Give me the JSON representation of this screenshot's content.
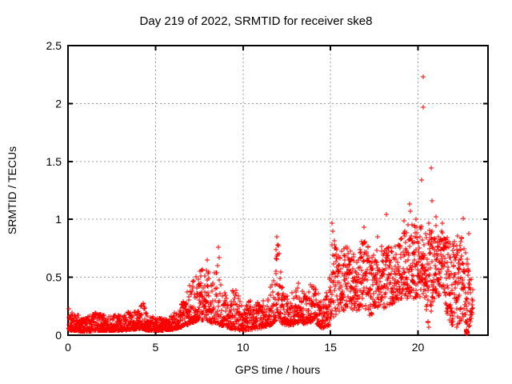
{
  "page": {
    "background": "#ffffff"
  },
  "chart_data": {
    "type": "scatter",
    "title": "Day 219 of 2022, SRMTID for receiver ske8",
    "xlabel": "GPS time / hours",
    "ylabel": "SRMTID / TECUs",
    "xlim": [
      0,
      24
    ],
    "ylim": [
      0,
      2.5
    ],
    "xticks": [
      {
        "v": 0,
        "label": "0"
      },
      {
        "v": 5,
        "label": "5"
      },
      {
        "v": 10,
        "label": "10"
      },
      {
        "v": 15,
        "label": "15"
      },
      {
        "v": 20,
        "label": "20"
      }
    ],
    "yticks": [
      {
        "v": 0,
        "label": "0"
      },
      {
        "v": 0.5,
        "label": "0.5"
      },
      {
        "v": 1,
        "label": "1"
      },
      {
        "v": 1.5,
        "label": "1.5"
      },
      {
        "v": 2,
        "label": "2"
      },
      {
        "v": 2.5,
        "label": "2.5"
      }
    ],
    "grid": true,
    "legend_position": "none",
    "marker": {
      "glyph": "plus",
      "size": 7,
      "color": "#ff0000",
      "stroke_width": 1
    },
    "grid_color": "#9e9e9e",
    "frame_color": "#000000",
    "text_color": "#000000",
    "seed": 219,
    "series_name": "SRMTID for receiver ske8",
    "envelope_columns": [
      "hour",
      "value_low",
      "value_high",
      "points_per_hour"
    ],
    "envelope": [
      [
        0.02,
        0.04,
        0.24,
        120
      ],
      [
        0.35,
        0.04,
        0.19,
        120
      ],
      [
        1.0,
        0.03,
        0.15,
        120
      ],
      [
        1.6,
        0.04,
        0.2,
        120
      ],
      [
        2.2,
        0.04,
        0.17,
        120
      ],
      [
        3.0,
        0.04,
        0.18,
        120
      ],
      [
        3.7,
        0.05,
        0.21,
        120
      ],
      [
        4.1,
        0.05,
        0.22,
        120
      ],
      [
        4.28,
        0.06,
        0.32,
        120
      ],
      [
        4.5,
        0.04,
        0.17,
        120
      ],
      [
        5.2,
        0.04,
        0.15,
        120
      ],
      [
        6.0,
        0.05,
        0.18,
        120
      ],
      [
        6.5,
        0.07,
        0.3,
        120
      ],
      [
        7.0,
        0.1,
        0.44,
        120
      ],
      [
        7.5,
        0.13,
        0.55,
        120
      ],
      [
        7.95,
        0.13,
        0.63,
        120
      ],
      [
        8.25,
        0.1,
        0.48,
        110
      ],
      [
        8.55,
        0.1,
        0.74,
        70
      ],
      [
        8.8,
        0.08,
        0.4,
        100
      ],
      [
        9.2,
        0.06,
        0.34,
        100
      ],
      [
        9.55,
        0.05,
        0.44,
        100
      ],
      [
        10.0,
        0.04,
        0.24,
        110
      ],
      [
        10.6,
        0.05,
        0.34,
        110
      ],
      [
        11.0,
        0.06,
        0.27,
        110
      ],
      [
        11.5,
        0.08,
        0.37,
        110
      ],
      [
        11.85,
        0.12,
        0.68,
        110
      ],
      [
        12.0,
        0.15,
        0.84,
        110
      ],
      [
        12.2,
        0.1,
        0.44,
        110
      ],
      [
        12.6,
        0.08,
        0.32,
        110
      ],
      [
        13.1,
        0.1,
        0.44,
        110
      ],
      [
        13.6,
        0.1,
        0.37,
        110
      ],
      [
        14.0,
        0.12,
        0.47,
        110
      ],
      [
        14.5,
        0.06,
        0.3,
        110
      ],
      [
        14.9,
        0.08,
        0.42,
        115
      ],
      [
        15.1,
        0.12,
        0.95,
        115
      ],
      [
        15.4,
        0.2,
        0.7,
        115
      ],
      [
        16.0,
        0.22,
        0.78,
        115
      ],
      [
        16.5,
        0.2,
        0.66,
        115
      ],
      [
        16.9,
        0.24,
        0.9,
        115
      ],
      [
        17.3,
        0.15,
        0.68,
        115
      ],
      [
        17.7,
        0.24,
        0.8,
        115
      ],
      [
        18.1,
        0.22,
        0.74,
        115
      ],
      [
        18.6,
        0.28,
        0.8,
        115
      ],
      [
        19.0,
        0.3,
        0.85,
        120
      ],
      [
        19.5,
        0.32,
        0.98,
        120
      ],
      [
        20.0,
        0.3,
        0.93,
        125
      ],
      [
        20.35,
        0.35,
        0.98,
        125
      ],
      [
        20.6,
        0.06,
        0.9,
        125
      ],
      [
        21.0,
        0.35,
        0.98,
        125
      ],
      [
        21.5,
        0.3,
        0.9,
        125
      ],
      [
        21.8,
        0.1,
        0.85,
        125
      ],
      [
        22.2,
        0.06,
        0.88,
        125
      ],
      [
        22.55,
        0.1,
        0.84,
        125
      ],
      [
        22.8,
        0.02,
        0.7,
        120
      ],
      [
        23.0,
        0.1,
        0.55,
        100
      ],
      [
        23.15,
        0.18,
        0.4,
        80
      ]
    ],
    "value_skew": [
      {
        "until": 6.4,
        "exp": 2.0
      },
      {
        "until": 14.7,
        "exp": 1.8
      },
      {
        "until": 24,
        "exp": 1.15
      }
    ],
    "outlier_points": [
      [
        7.95,
        0.65
      ],
      [
        8.6,
        0.76
      ],
      [
        8.62,
        0.67
      ],
      [
        11.95,
        0.85
      ],
      [
        11.97,
        0.78
      ],
      [
        13.15,
        0.45
      ],
      [
        15.1,
        0.97
      ],
      [
        15.12,
        0.9
      ],
      [
        16.9,
        0.93
      ],
      [
        17.7,
        0.85
      ],
      [
        18.2,
        1.04
      ],
      [
        19.2,
        0.99
      ],
      [
        19.5,
        1.13
      ],
      [
        19.55,
        1.07
      ],
      [
        19.9,
        1.0
      ],
      [
        20.2,
        1.34
      ],
      [
        20.28,
        2.23
      ],
      [
        20.3,
        1.97
      ],
      [
        20.6,
        0.97
      ],
      [
        20.75,
        1.44
      ],
      [
        20.78,
        1.16
      ],
      [
        21.05,
        1.02
      ],
      [
        21.4,
        0.97
      ],
      [
        22.6,
        1.01
      ],
      [
        22.9,
        0.88
      ]
    ],
    "dense_clusters": [
      {
        "hour": 22.8,
        "value": 0.01,
        "count": 16,
        "hour_jitter": 0.07,
        "value_jitter": 0.03
      }
    ]
  }
}
